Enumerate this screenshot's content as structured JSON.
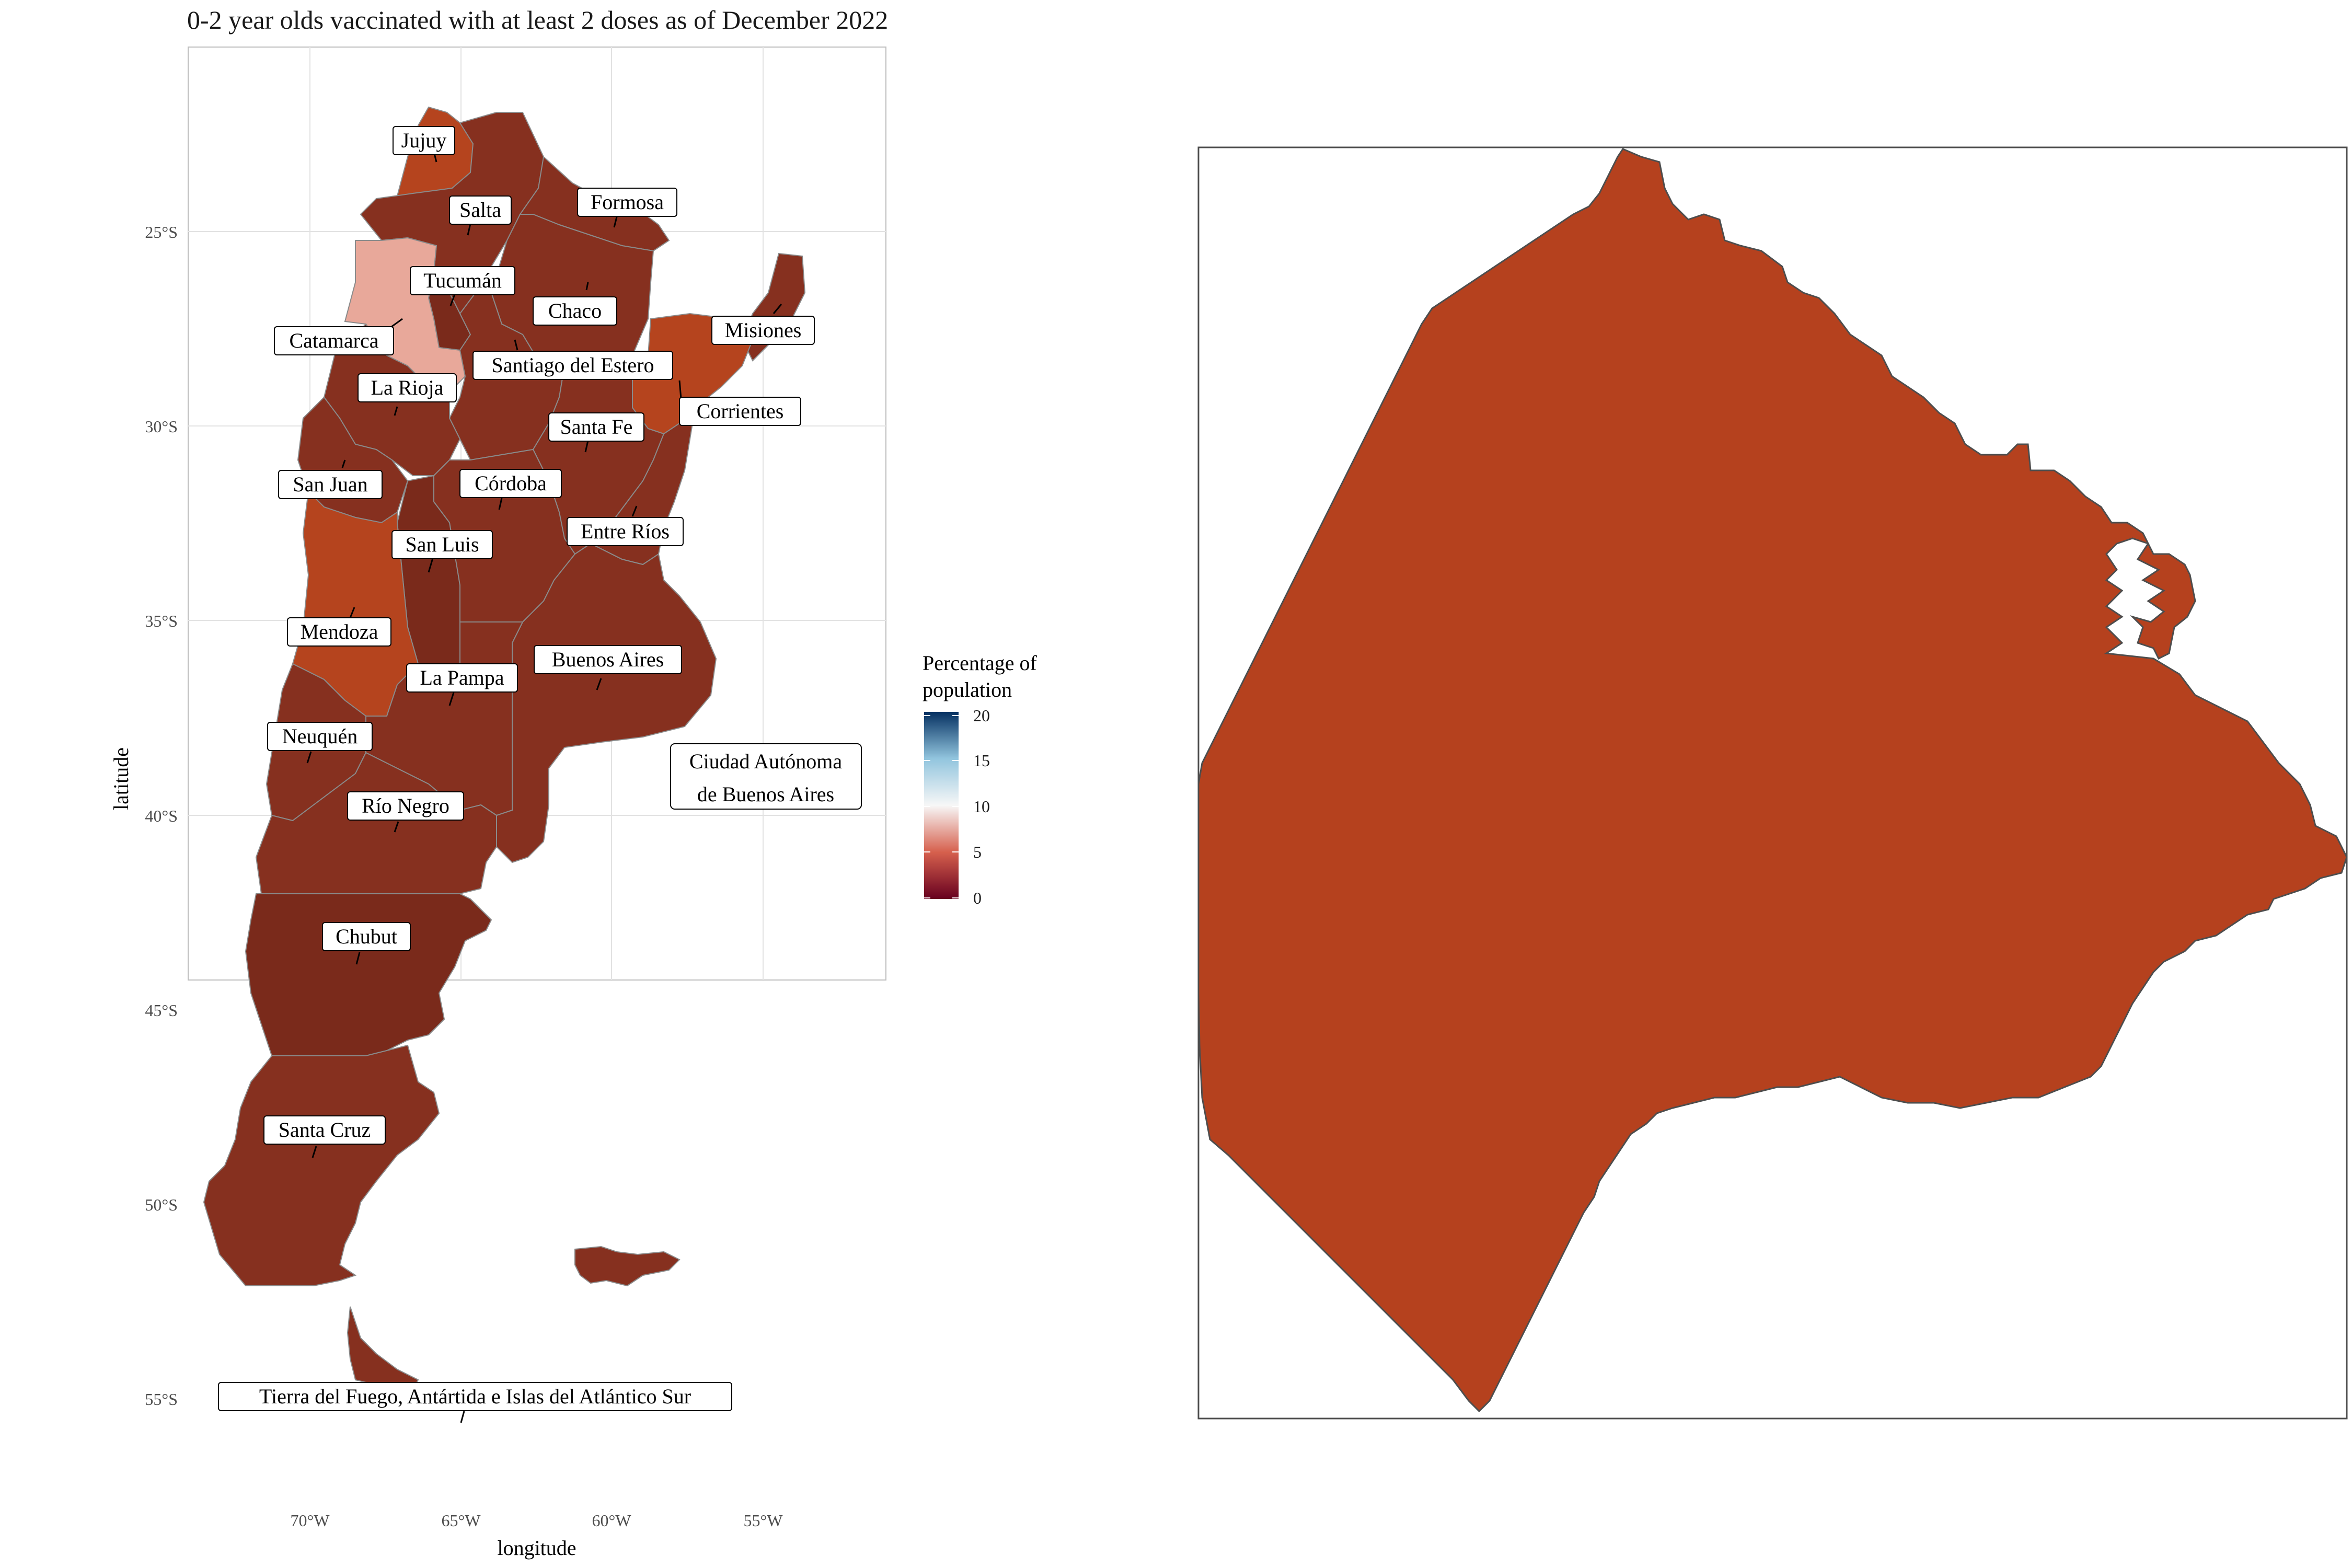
{
  "title": "0-2 year olds vaccinated with at least 2 doses as of December 2022",
  "axes": {
    "xlabel": "longitude",
    "ylabel": "latitude",
    "xticks": [
      "70°W",
      "65°W",
      "60°W",
      "55°W"
    ],
    "yticks": [
      "25°S",
      "30°S",
      "35°S",
      "40°S",
      "45°S",
      "50°S",
      "55°S"
    ],
    "xlim": [
      -74,
      -51
    ],
    "ylim": [
      -57.5,
      -20.5
    ],
    "grid": true
  },
  "legend": {
    "title_line1": "Percentage of",
    "title_line2": "population",
    "ticks": [
      "20",
      "15",
      "10",
      "5",
      "0"
    ],
    "range": [
      0,
      20
    ],
    "colors": {
      "low": "#67001f",
      "mid_low": "#d6604d",
      "mid": "#f7f7f7",
      "mid_high": "#92c5de",
      "high": "#053061"
    }
  },
  "colors": {
    "dark_province": "#86301f",
    "darker_province": "#7a2a1b",
    "orange_province": "#b5441e",
    "catamarca": "#e8a89a",
    "caba": "#b5411e",
    "border": "#8a8a8a",
    "grid": "#e2e2e2",
    "panel_border": "#bdbdbd"
  },
  "labels": {
    "jujuy": "Jujuy",
    "salta": "Salta",
    "formosa": "Formosa",
    "tucuman": "Tucumán",
    "chaco": "Chaco",
    "catamarca": "Catamarca",
    "misiones": "Misiones",
    "santiago": "Santiago del Estero",
    "larioja": "La Rioja",
    "corrientes": "Corrientes",
    "santafe": "Santa Fe",
    "sanjuan": "San Juan",
    "cordoba": "Córdoba",
    "sanluis": "San Luis",
    "entrerios": "Entre Ríos",
    "mendoza": "Mendoza",
    "buenosaires": "Buenos Aires",
    "lapampa": "La Pampa",
    "neuquen": "Neuquén",
    "caba1": "Ciudad Autónoma",
    "caba2": "de Buenos Aires",
    "rionegro": "Río Negro",
    "chubut": "Chubut",
    "santacruz": "Santa Cruz",
    "tdf": "Tierra del Fuego, Antártida e Islas del Atlántico Sur"
  }
}
